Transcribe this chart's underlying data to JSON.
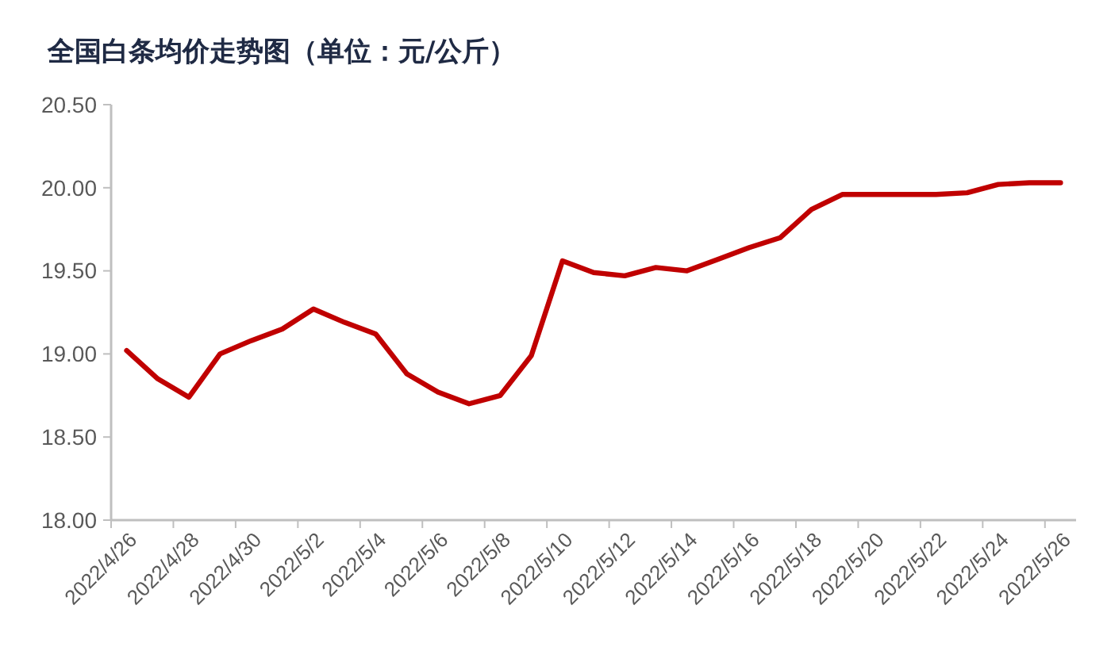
{
  "chart_data": {
    "type": "line",
    "title": "全国白条均价走势图（单位：元/公斤）",
    "categories": [
      "2022/4/26",
      null,
      "2022/4/28",
      null,
      "2022/4/30",
      null,
      "2022/5/2",
      null,
      "2022/5/4",
      null,
      "2022/5/6",
      null,
      "2022/5/8",
      null,
      "2022/5/10",
      null,
      "2022/5/12",
      null,
      "2022/5/14",
      null,
      "2022/5/16",
      null,
      "2022/5/18",
      null,
      "2022/5/20",
      null,
      "2022/5/22",
      null,
      "2022/5/24",
      null,
      "2022/5/26"
    ],
    "series": [
      {
        "color": "#c00000",
        "values": [
          19.02,
          18.85,
          18.74,
          19.0,
          19.08,
          19.15,
          19.27,
          19.19,
          19.12,
          18.88,
          18.77,
          18.7,
          18.75,
          18.99,
          19.56,
          19.49,
          19.47,
          19.52,
          19.5,
          19.57,
          19.64,
          19.7,
          19.87,
          19.96,
          19.96,
          19.96,
          19.96,
          19.97,
          20.02,
          20.03,
          20.03
        ]
      }
    ],
    "ylim": [
      18,
      20.5
    ],
    "yticks": [
      {
        "value": 18,
        "label": "18.00"
      },
      {
        "value": 18.5,
        "label": "18.50"
      },
      {
        "value": 19,
        "label": "19.00"
      },
      {
        "value": 19.5,
        "label": "19.50"
      },
      {
        "value": 20,
        "label": "20.00"
      },
      {
        "value": 20.5,
        "label": "20.50"
      }
    ],
    "grid": false,
    "marker": "none",
    "line_style": "solid"
  }
}
